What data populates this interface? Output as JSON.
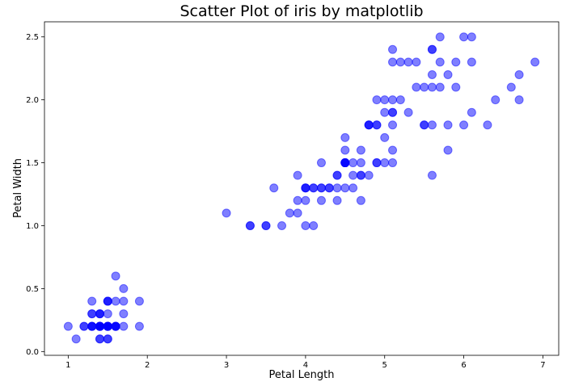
{
  "chart_data": {
    "type": "scatter",
    "title": "Scatter Plot of iris by matplotlib",
    "xlabel": "Petal Length",
    "ylabel": "Petal Width",
    "xlim": [
      0.7,
      7.2
    ],
    "ylim": [
      -0.03,
      2.62
    ],
    "xticks": [
      "1",
      "2",
      "3",
      "4",
      "5",
      "6",
      "7"
    ],
    "yticks": [
      "0.0",
      "0.5",
      "1.0",
      "1.5",
      "2.0",
      "2.5"
    ],
    "grid": false,
    "marker_color": "#0000ff",
    "marker_alpha": 0.5,
    "points": [
      [
        1.4,
        0.2
      ],
      [
        1.4,
        0.2
      ],
      [
        1.3,
        0.2
      ],
      [
        1.5,
        0.2
      ],
      [
        1.4,
        0.2
      ],
      [
        1.7,
        0.4
      ],
      [
        1.4,
        0.3
      ],
      [
        1.5,
        0.2
      ],
      [
        1.4,
        0.2
      ],
      [
        1.5,
        0.1
      ],
      [
        1.5,
        0.2
      ],
      [
        1.6,
        0.2
      ],
      [
        1.4,
        0.1
      ],
      [
        1.1,
        0.1
      ],
      [
        1.2,
        0.2
      ],
      [
        1.5,
        0.4
      ],
      [
        1.3,
        0.4
      ],
      [
        1.4,
        0.3
      ],
      [
        1.7,
        0.3
      ],
      [
        1.5,
        0.3
      ],
      [
        1.7,
        0.2
      ],
      [
        1.5,
        0.4
      ],
      [
        1.0,
        0.2
      ],
      [
        1.7,
        0.5
      ],
      [
        1.9,
        0.2
      ],
      [
        1.6,
        0.2
      ],
      [
        1.6,
        0.4
      ],
      [
        1.5,
        0.2
      ],
      [
        1.4,
        0.2
      ],
      [
        1.6,
        0.2
      ],
      [
        1.6,
        0.2
      ],
      [
        1.5,
        0.4
      ],
      [
        1.5,
        0.1
      ],
      [
        1.4,
        0.2
      ],
      [
        1.5,
        0.2
      ],
      [
        1.2,
        0.2
      ],
      [
        1.3,
        0.2
      ],
      [
        1.4,
        0.1
      ],
      [
        1.3,
        0.2
      ],
      [
        1.5,
        0.2
      ],
      [
        1.3,
        0.3
      ],
      [
        1.3,
        0.3
      ],
      [
        1.3,
        0.2
      ],
      [
        1.6,
        0.6
      ],
      [
        1.9,
        0.4
      ],
      [
        1.4,
        0.3
      ],
      [
        1.6,
        0.2
      ],
      [
        1.4,
        0.2
      ],
      [
        1.5,
        0.2
      ],
      [
        1.4,
        0.2
      ],
      [
        4.7,
        1.4
      ],
      [
        4.5,
        1.5
      ],
      [
        4.9,
        1.5
      ],
      [
        4.0,
        1.3
      ],
      [
        4.6,
        1.5
      ],
      [
        4.5,
        1.3
      ],
      [
        4.7,
        1.6
      ],
      [
        3.3,
        1.0
      ],
      [
        4.6,
        1.3
      ],
      [
        3.9,
        1.4
      ],
      [
        3.5,
        1.0
      ],
      [
        4.2,
        1.5
      ],
      [
        4.0,
        1.0
      ],
      [
        4.7,
        1.4
      ],
      [
        3.6,
        1.3
      ],
      [
        4.4,
        1.4
      ],
      [
        4.5,
        1.5
      ],
      [
        4.1,
        1.0
      ],
      [
        4.5,
        1.5
      ],
      [
        3.9,
        1.1
      ],
      [
        4.8,
        1.8
      ],
      [
        4.0,
        1.3
      ],
      [
        4.9,
        1.5
      ],
      [
        4.7,
        1.2
      ],
      [
        4.3,
        1.3
      ],
      [
        4.4,
        1.4
      ],
      [
        4.8,
        1.4
      ],
      [
        5.0,
        1.7
      ],
      [
        4.5,
        1.5
      ],
      [
        3.5,
        1.0
      ],
      [
        3.8,
        1.1
      ],
      [
        3.7,
        1.0
      ],
      [
        3.9,
        1.2
      ],
      [
        5.1,
        1.6
      ],
      [
        4.5,
        1.5
      ],
      [
        4.5,
        1.6
      ],
      [
        4.7,
        1.5
      ],
      [
        4.4,
        1.3
      ],
      [
        4.1,
        1.3
      ],
      [
        4.0,
        1.3
      ],
      [
        4.4,
        1.2
      ],
      [
        4.6,
        1.4
      ],
      [
        4.0,
        1.2
      ],
      [
        3.3,
        1.0
      ],
      [
        4.2,
        1.3
      ],
      [
        4.2,
        1.2
      ],
      [
        4.2,
        1.3
      ],
      [
        4.3,
        1.3
      ],
      [
        3.0,
        1.1
      ],
      [
        4.1,
        1.3
      ],
      [
        6.0,
        2.5
      ],
      [
        5.1,
        1.9
      ],
      [
        5.9,
        2.1
      ],
      [
        5.6,
        1.8
      ],
      [
        5.8,
        2.2
      ],
      [
        6.6,
        2.1
      ],
      [
        4.5,
        1.7
      ],
      [
        6.3,
        1.8
      ],
      [
        5.8,
        1.8
      ],
      [
        6.1,
        2.5
      ],
      [
        5.1,
        2.0
      ],
      [
        5.3,
        1.9
      ],
      [
        5.5,
        2.1
      ],
      [
        5.0,
        2.0
      ],
      [
        5.1,
        2.4
      ],
      [
        5.3,
        2.3
      ],
      [
        5.5,
        1.8
      ],
      [
        6.7,
        2.2
      ],
      [
        6.9,
        2.3
      ],
      [
        5.0,
        1.5
      ],
      [
        5.7,
        2.3
      ],
      [
        4.9,
        2.0
      ],
      [
        6.7,
        2.0
      ],
      [
        4.9,
        1.8
      ],
      [
        5.7,
        2.1
      ],
      [
        6.0,
        1.8
      ],
      [
        4.8,
        1.8
      ],
      [
        4.9,
        1.8
      ],
      [
        5.6,
        2.1
      ],
      [
        5.8,
        1.6
      ],
      [
        6.1,
        1.9
      ],
      [
        6.4,
        2.0
      ],
      [
        5.6,
        2.2
      ],
      [
        5.1,
        1.5
      ],
      [
        5.6,
        1.4
      ],
      [
        6.1,
        2.3
      ],
      [
        5.6,
        2.4
      ],
      [
        5.5,
        1.8
      ],
      [
        4.8,
        1.8
      ],
      [
        5.4,
        2.1
      ],
      [
        5.6,
        2.4
      ],
      [
        5.1,
        2.3
      ],
      [
        5.1,
        1.9
      ],
      [
        5.9,
        2.3
      ],
      [
        5.7,
        2.5
      ],
      [
        5.2,
        2.3
      ],
      [
        5.0,
        1.9
      ],
      [
        5.2,
        2.0
      ],
      [
        5.4,
        2.3
      ],
      [
        5.1,
        1.8
      ]
    ]
  }
}
